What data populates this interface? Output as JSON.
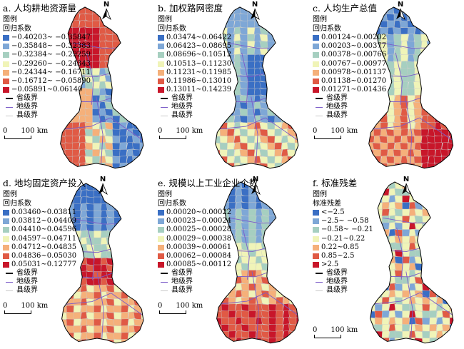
{
  "panels": [
    {
      "title": "a. 人均耕地资源量",
      "legend_title": "图例",
      "legend_subtitle": "回归系数",
      "classes": [
        {
          "label": "−0.40203~ −0.35847",
          "color": "#3a6fc4"
        },
        {
          "label": "−0.35848~ −0.32383",
          "color": "#7ea7d6"
        },
        {
          "label": "−0.32384~ −0.29259",
          "color": "#a6cfc0"
        },
        {
          "label": "−0.29260~ −0.24343",
          "color": "#f0f4b8"
        },
        {
          "label": "−0.24344~ −0.16711",
          "color": "#f5b07a"
        },
        {
          "label": "−0.16712~ −0.05890",
          "color": "#e05a45"
        },
        {
          "label": "−0.05891~0.06140",
          "color": "#c8162a"
        }
      ]
    },
    {
      "title": "b. 加权路网密度",
      "legend_title": "图例",
      "legend_subtitle": "回归系数",
      "classes": [
        {
          "label": "0.03474~0.06422",
          "color": "#3a6fc4"
        },
        {
          "label": "0.06423~0.08695",
          "color": "#7ea7d6"
        },
        {
          "label": "0.08696~0.10512",
          "color": "#a6cfc0"
        },
        {
          "label": "0.10513~0.11230",
          "color": "#f0f4b8"
        },
        {
          "label": "0.11231~0.11985",
          "color": "#f5b07a"
        },
        {
          "label": "0.11986~0.13010",
          "color": "#e05a45"
        },
        {
          "label": "0.13011~0.14239",
          "color": "#c8162a"
        }
      ]
    },
    {
      "title": "c. 人均生产总值",
      "legend_title": "图例",
      "legend_subtitle": "回归系数",
      "classes": [
        {
          "label": "0.00124~0.00202",
          "color": "#3a6fc4"
        },
        {
          "label": "0.00203~0.00377",
          "color": "#7ea7d6"
        },
        {
          "label": "0.00378~0.00766",
          "color": "#a6cfc0"
        },
        {
          "label": "0.00767~0.00977",
          "color": "#f0f4b8"
        },
        {
          "label": "0.00978~0.01137",
          "color": "#f5b07a"
        },
        {
          "label": "0.01138~0.01270",
          "color": "#e05a45"
        },
        {
          "label": "0.01271~0.01436",
          "color": "#c8162a"
        }
      ]
    },
    {
      "title": "d. 地均固定资产投入",
      "legend_title": "图例",
      "legend_subtitle": "回归系数",
      "classes": [
        {
          "label": "0.03460~0.03811",
          "color": "#3a6fc4"
        },
        {
          "label": "0.03812~0.04409",
          "color": "#7ea7d6"
        },
        {
          "label": "0.04410~0.04596",
          "color": "#a6cfc0"
        },
        {
          "label": "0.04597~0.04711",
          "color": "#f0f4b8"
        },
        {
          "label": "0.04712~0.04835",
          "color": "#f5b07a"
        },
        {
          "label": "0.04836~0.05030",
          "color": "#e05a45"
        },
        {
          "label": "0.05031~0.12777",
          "color": "#c8162a"
        }
      ]
    },
    {
      "title": "e. 规模以上工业企业个数",
      "legend_title": "图例",
      "legend_subtitle": "回归系数",
      "classes": [
        {
          "label": "0.00020~0.00022",
          "color": "#3a6fc4"
        },
        {
          "label": "0.00023~0.00024",
          "color": "#7ea7d6"
        },
        {
          "label": "0.00025~0.00028",
          "color": "#a6cfc0"
        },
        {
          "label": "0.00029~0.00038",
          "color": "#f0f4b8"
        },
        {
          "label": "0.00039~0.00061",
          "color": "#f5b07a"
        },
        {
          "label": "0.00062~0.00084",
          "color": "#e05a45"
        },
        {
          "label": "0.00085~0.00112",
          "color": "#c8162a"
        }
      ]
    },
    {
      "title": "f. 标准残差",
      "legend_title": "图例",
      "legend_subtitle": "标准残差",
      "classes": [
        {
          "label": "<−2.5",
          "color": "#3a6fc4"
        },
        {
          "label": "−2.5~ −0.58",
          "color": "#7ea7d6"
        },
        {
          "label": "−0.58~ −0.21",
          "color": "#a6cfc0"
        },
        {
          "label": "−0.21~0.22",
          "color": "#f0f4b8"
        },
        {
          "label": "0.22~0.85",
          "color": "#f5b07a"
        },
        {
          "label": "0.85~2.5",
          "color": "#e05a45"
        },
        {
          "label": ">2.5",
          "color": "#c8162a"
        }
      ]
    }
  ],
  "boundaries": {
    "province": {
      "label": "省级界",
      "color": "#000000"
    },
    "prefecture": {
      "label": "地级界",
      "color": "#7b5cc8"
    },
    "county": {
      "label": "县级界",
      "color": "#c9c9c9"
    }
  },
  "scale_label": "0      100 km",
  "north_label": "N"
}
